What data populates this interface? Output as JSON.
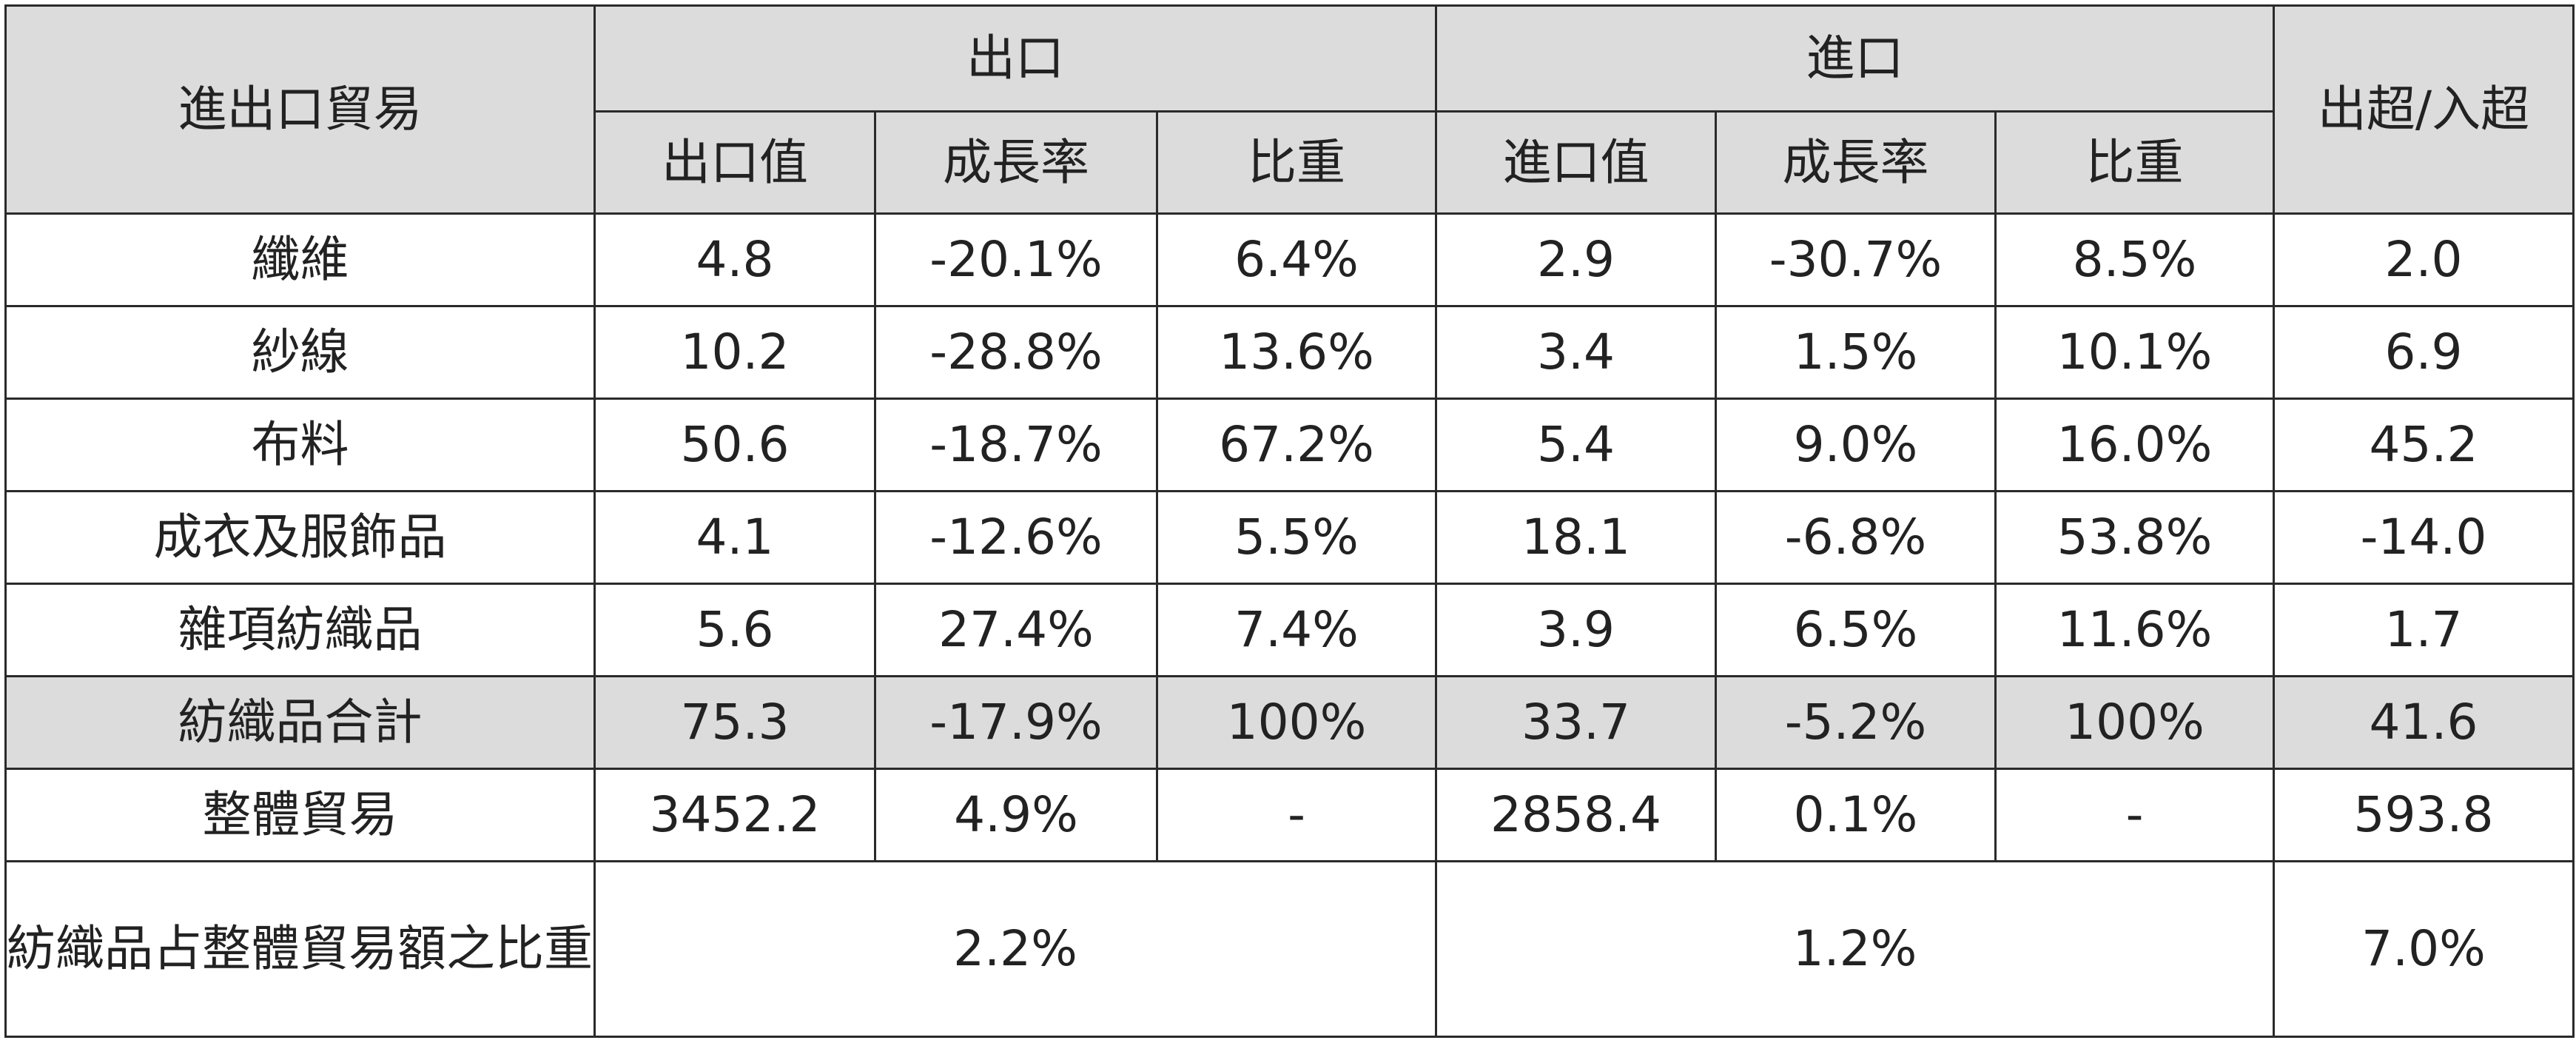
{
  "table": {
    "corner_label": "進出口貿易",
    "group_export": "出口",
    "group_import": "進口",
    "balance_label": "出超/入超",
    "sub_headers": {
      "export_value": "出口值",
      "export_growth": "成長率",
      "export_share": "比重",
      "import_value": "進口值",
      "import_growth": "成長率",
      "import_share": "比重"
    },
    "rows": [
      {
        "label": "纖維",
        "export_value": "4.8",
        "export_growth": "-20.1%",
        "export_share": "6.4%",
        "import_value": "2.9",
        "import_growth": "-30.7%",
        "import_share": "8.5%",
        "balance": "2.0"
      },
      {
        "label": "紗線",
        "export_value": "10.2",
        "export_growth": "-28.8%",
        "export_share": "13.6%",
        "import_value": "3.4",
        "import_growth": "1.5%",
        "import_share": "10.1%",
        "balance": "6.9"
      },
      {
        "label": "布料",
        "export_value": "50.6",
        "export_growth": "-18.7%",
        "export_share": "67.2%",
        "import_value": "5.4",
        "import_growth": "9.0%",
        "import_share": "16.0%",
        "balance": "45.2"
      },
      {
        "label": "成衣及服飾品",
        "export_value": "4.1",
        "export_growth": "-12.6%",
        "export_share": "5.5%",
        "import_value": "18.1",
        "import_growth": "-6.8%",
        "import_share": "53.8%",
        "balance": "-14.0"
      },
      {
        "label": "雜項紡織品",
        "export_value": "5.6",
        "export_growth": "27.4%",
        "export_share": "7.4%",
        "import_value": "3.9",
        "import_growth": "6.5%",
        "import_share": "11.6%",
        "balance": "1.7"
      },
      {
        "label": "紡織品合計",
        "export_value": "75.3",
        "export_growth": "-17.9%",
        "export_share": "100%",
        "import_value": "33.7",
        "import_growth": "-5.2%",
        "import_share": "100%",
        "balance": "41.6"
      },
      {
        "label": "整體貿易",
        "export_value": "3452.2",
        "export_growth": "4.9%",
        "export_share": "-",
        "import_value": "2858.4",
        "import_growth": "0.1%",
        "import_share": "-",
        "balance": "593.8"
      }
    ],
    "share_row": {
      "label": "紡織品占整體貿易額之比重%",
      "export": "2.2%",
      "import": "1.2%",
      "balance": "7.0%"
    }
  },
  "colors": {
    "header_bg": "#dcdcdc",
    "total_row_bg": "#dcdcdc",
    "border": "#2a2a2a",
    "text": "#222222"
  }
}
